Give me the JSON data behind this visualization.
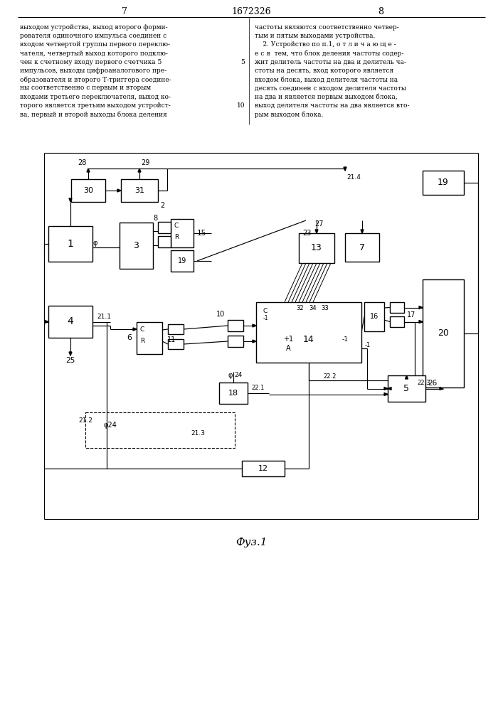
{
  "title_line1": "7",
  "title_center": "1672326",
  "title_line2": "8",
  "fig_caption": "Фуз.1",
  "text_left": [
    "выходом устройства, выход второго форми-",
    "рователя одиночного импульса соединен с",
    "входом четвертой группы первого переклю-",
    "чателя, четвертый выход которого подклю-",
    "чен к счетному входу первого счетчика 5",
    "импульсов, выходы цифроаналогового пре-",
    "образователя и второго Т-триггера соедине-",
    "ны соответственно с первым и вторым",
    "входами третьего переключателя, выход ко-",
    "торого является третьим выходом устройст-",
    "ва, первый и второй выходы блока деления"
  ],
  "text_right": [
    "частоты являются соответственно четвер-",
    "тым и пятым выходами устройства.",
    "    2. Устройство по п.1, о т л и ч а ю щ е -",
    "е с я  тем, что блок деления частоты содер-",
    "жит делитель частоты на два и делитель ча-",
    "стоты на десять, вход которого является",
    "входом блока, выход делителя частоты на",
    "десять соединен с входом делителя частоты",
    "на два и является первым выходом блока,",
    "выход делителя частоты на два является вто-",
    "рым выходом блока."
  ],
  "bg_color": "#ffffff"
}
